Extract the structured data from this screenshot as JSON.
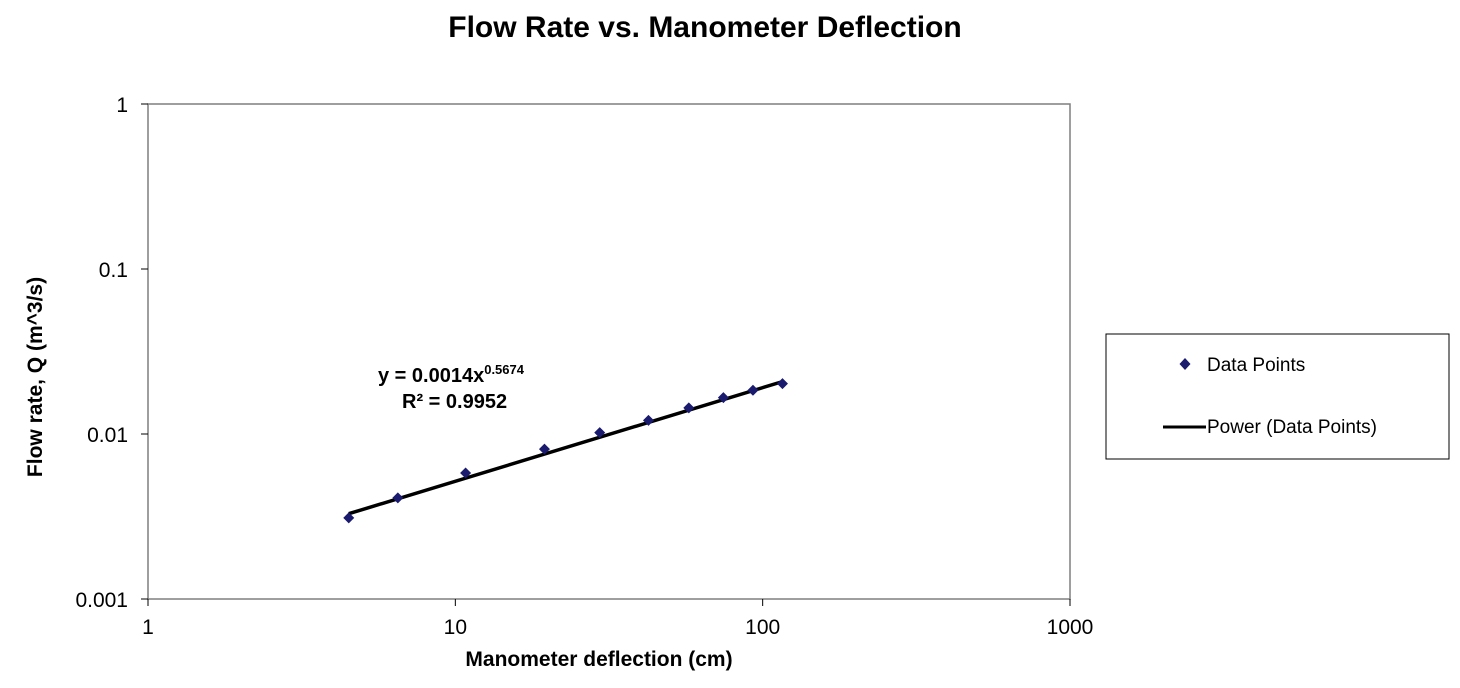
{
  "chart_data": {
    "type": "scatter",
    "title": "Flow Rate vs. Manometer Deflection",
    "xlabel": "Manometer deflection (cm)",
    "ylabel": "Flow rate, Q (m^3/s)",
    "xscale": "log",
    "yscale": "log",
    "xlim": [
      1,
      1000
    ],
    "ylim": [
      0.001,
      1
    ],
    "xticks": [
      "1",
      "10",
      "100",
      "1000"
    ],
    "yticks": [
      "0.001",
      "0.01",
      "0.1",
      "1"
    ],
    "grid": false,
    "legend_position": "right",
    "series": [
      {
        "name": "Data Points",
        "marker": "diamond",
        "color": "#1a1a6e",
        "x": [
          4.5,
          6.5,
          10.8,
          19.5,
          29.5,
          42.5,
          57.5,
          74.5,
          93.0,
          116.0
        ],
        "y": [
          0.0031,
          0.0041,
          0.0058,
          0.0081,
          0.0102,
          0.0121,
          0.0144,
          0.0166,
          0.0184,
          0.0202
        ]
      },
      {
        "name": "Power (Data Points)",
        "type": "trendline",
        "color": "#000000",
        "coefficient": 0.0014,
        "exponent": 0.5674,
        "x_range": [
          4.5,
          116.0
        ]
      }
    ],
    "annotations": {
      "equation_prefix": "y = 0.0014x",
      "equation_exponent": "0.5674",
      "r_squared": "R² = 0.9952"
    }
  }
}
